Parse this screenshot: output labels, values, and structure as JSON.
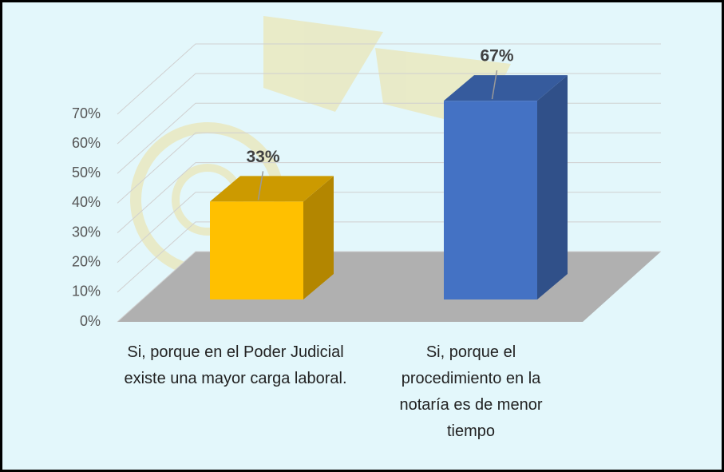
{
  "chart_data": {
    "type": "bar3d",
    "categories": [
      "Si, porque en el Poder Judicial existe una mayor carga laboral.",
      "Si, porque el procedimiento en la notaría es de menor tiempo"
    ],
    "values": [
      33,
      67
    ],
    "value_labels": [
      "33%",
      "67%"
    ],
    "colors": [
      "#ffc000",
      "#4472c4"
    ],
    "ylim": [
      0,
      70
    ],
    "yticks": [
      {
        "value": 0,
        "label": "0%"
      },
      {
        "value": 10,
        "label": "10%"
      },
      {
        "value": 20,
        "label": "20%"
      },
      {
        "value": 30,
        "label": "30%"
      },
      {
        "value": 40,
        "label": "40%"
      },
      {
        "value": 50,
        "label": "50%"
      },
      {
        "value": 60,
        "label": "60%"
      },
      {
        "value": 70,
        "label": "70%"
      }
    ],
    "grid": true
  }
}
